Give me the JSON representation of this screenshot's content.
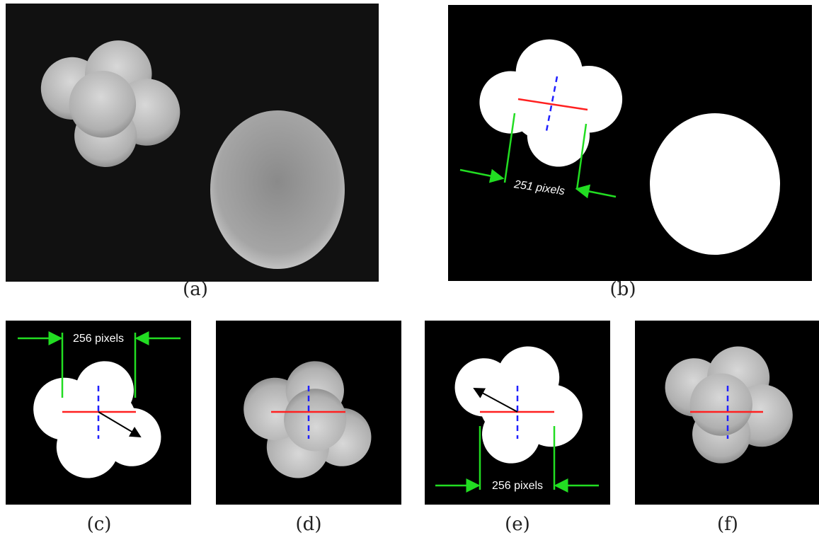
{
  "panels": [
    {
      "label": "(a)"
    },
    {
      "label": "(b)",
      "annotation": "251 pixels"
    },
    {
      "label": "(c)",
      "annotation": "256 pixels"
    },
    {
      "label": "(d)"
    },
    {
      "label": "(e)",
      "annotation": "256 pixels"
    },
    {
      "label": "(f)"
    }
  ]
}
